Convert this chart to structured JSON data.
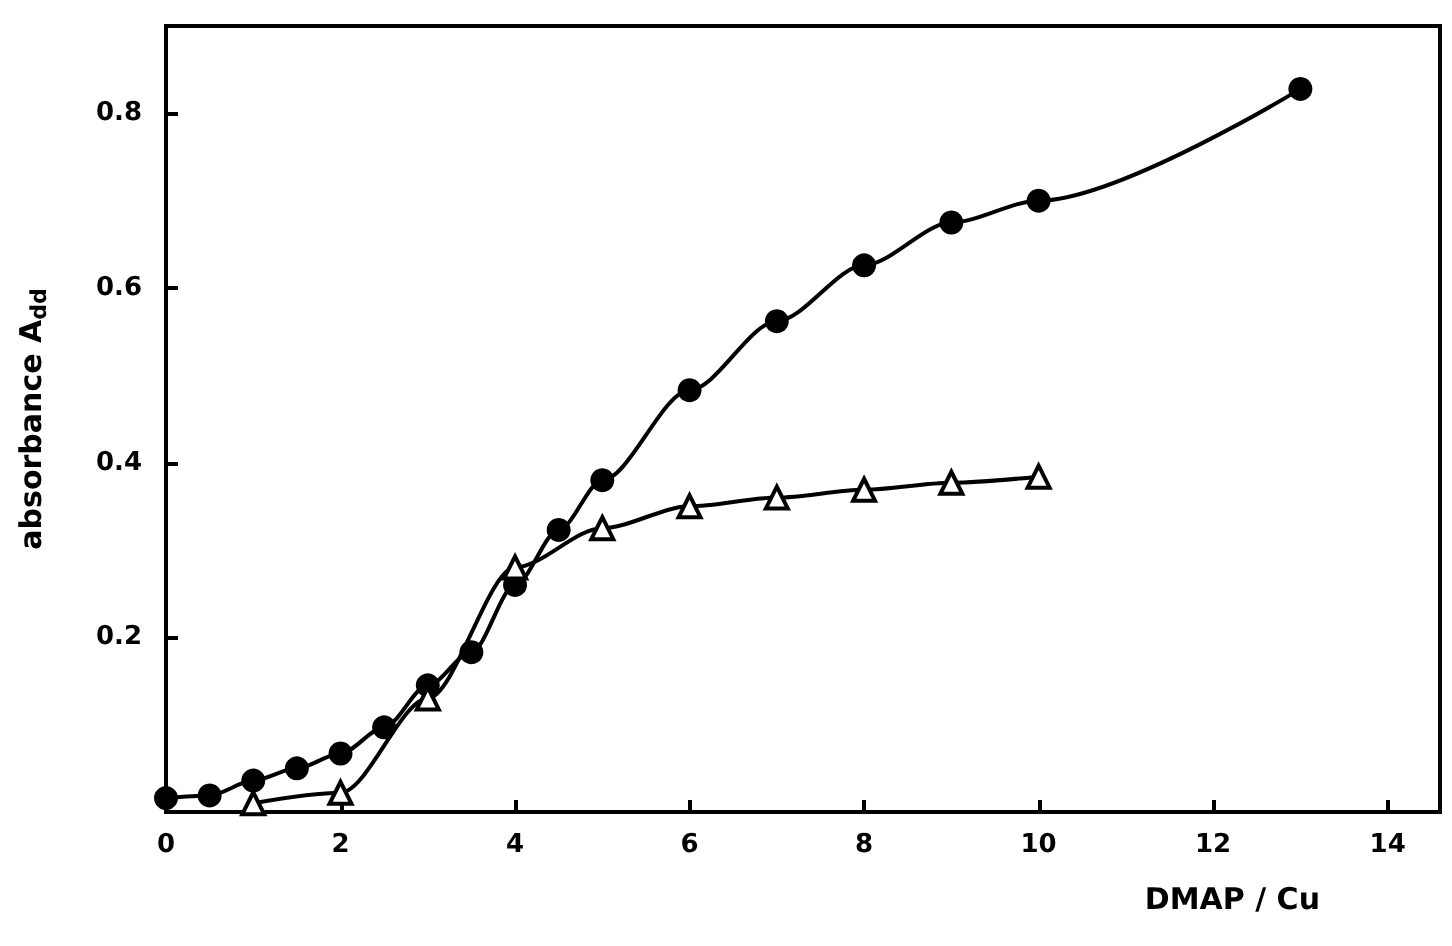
{
  "chart_data": {
    "type": "line",
    "xlabel": "DMAP / Cu",
    "ylabel": "absorbance A$_{dd}$",
    "xlim": [
      0,
      14.6
    ],
    "xticks": [
      0,
      2,
      4,
      6,
      8,
      10,
      12,
      14
    ],
    "ylim": [
      0,
      0.9
    ],
    "yticks": [
      0.2,
      0.4,
      0.6,
      0.8
    ],
    "grid": false,
    "line_style": "solid",
    "series": [
      {
        "color": "#000000",
        "marker": "circle",
        "x": [
          0,
          0.5,
          1,
          1.5,
          2,
          2.5,
          3,
          3.5,
          4,
          4.5,
          5,
          6,
          7,
          8,
          9,
          10,
          13
        ],
        "values": [
          0.016,
          0.019,
          0.036,
          0.05,
          0.067,
          0.097,
          0.145,
          0.183,
          0.26,
          0.323,
          0.38,
          0.483,
          0.562,
          0.626,
          0.675,
          0.7,
          0.828
        ]
      },
      {
        "color": "#000000",
        "marker": "triangle",
        "x": [
          1,
          2,
          3,
          4,
          5,
          6,
          7,
          8,
          9,
          10
        ],
        "values": [
          0.01,
          0.022,
          0.13,
          0.28,
          0.325,
          0.35,
          0.36,
          0.369,
          0.377,
          0.384
        ]
      }
    ]
  }
}
